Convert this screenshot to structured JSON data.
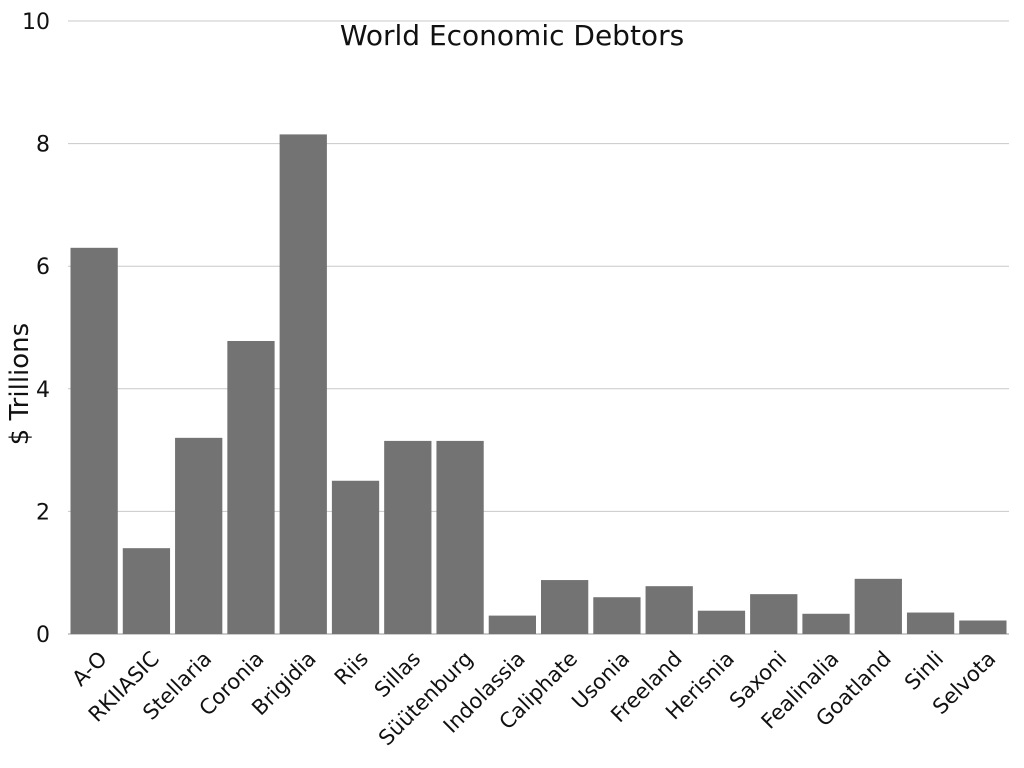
{
  "chart_data": {
    "type": "bar",
    "title": "World Economic Debtors",
    "xlabel": "",
    "ylabel": "$ Trillions",
    "ylim": [
      0,
      10
    ],
    "yticks": [
      0,
      2,
      4,
      6,
      8,
      10
    ],
    "grid": true,
    "legend": "none",
    "bar_color": "#737373",
    "categories": [
      "A-O",
      "RKIIASIC",
      "Stellaria",
      "Coronia",
      "Brigidia",
      "Riis",
      "Sillas",
      "Süütenburg",
      "Indolassia",
      "Caliphate",
      "Usonia",
      "Freeland",
      "Herisnia",
      "Saxoni",
      "Fealinalia",
      "Goatland",
      "Sinli",
      "Selvota"
    ],
    "values": [
      6.3,
      1.4,
      3.2,
      4.78,
      8.15,
      2.5,
      3.15,
      3.15,
      0.3,
      0.88,
      0.6,
      0.78,
      0.38,
      0.65,
      0.33,
      0.9,
      0.35,
      0.22
    ]
  }
}
